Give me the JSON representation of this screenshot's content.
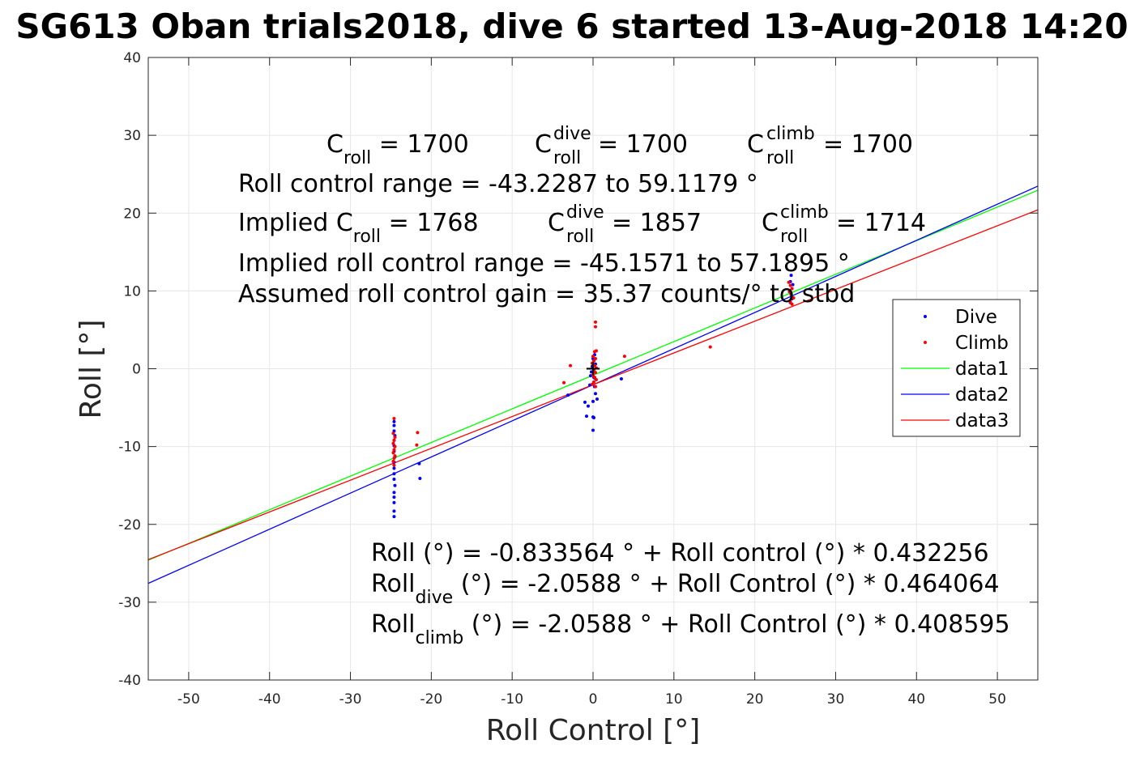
{
  "chart_data": {
    "type": "scatter",
    "title": "SG613 Oban trials2018, dive 6 started 13-Aug-2018 14:20",
    "xlabel": "Roll Control [°]",
    "ylabel": "Roll [°]",
    "xlim": [
      -55,
      55
    ],
    "ylim": [
      -40,
      40
    ],
    "xticks": [
      -50,
      -40,
      -30,
      -20,
      -10,
      0,
      10,
      20,
      30,
      40,
      50
    ],
    "yticks": [
      -40,
      -30,
      -20,
      -10,
      0,
      10,
      20,
      30,
      40
    ],
    "grid": true,
    "legend_position": "right",
    "colors": {
      "dive": "#0000ff",
      "climb": "#ff0000",
      "data1": "#00ff00",
      "data2": "#0000ff",
      "data3": "#ff0000"
    },
    "scatter_series": [
      {
        "name": "Dive",
        "color": "#0000ff",
        "points": [
          [
            -24.6,
            -6.8
          ],
          [
            -24.6,
            -7.3
          ],
          [
            -24.6,
            -8.0
          ],
          [
            -24.5,
            -8.6
          ],
          [
            -24.6,
            -9.2
          ],
          [
            -24.6,
            -9.9
          ],
          [
            -24.6,
            -10.6
          ],
          [
            -24.5,
            -11.3
          ],
          [
            -24.6,
            -12.0
          ],
          [
            -24.6,
            -12.8
          ],
          [
            -24.6,
            -13.5
          ],
          [
            -24.6,
            -14.2
          ],
          [
            -24.5,
            -15.0
          ],
          [
            -24.6,
            -15.9
          ],
          [
            -24.6,
            -16.5
          ],
          [
            -24.6,
            -17.2
          ],
          [
            -24.6,
            -18.3
          ],
          [
            -24.6,
            -19.0
          ],
          [
            -21.5,
            -12.2
          ],
          [
            -21.4,
            -14.1
          ],
          [
            -3.1,
            -3.4
          ],
          [
            -1.0,
            -4.3
          ],
          [
            -0.6,
            -4.8
          ],
          [
            -0.8,
            -6.1
          ],
          [
            0.0,
            -6.2
          ],
          [
            0.1,
            -6.3
          ],
          [
            0.0,
            -7.9
          ],
          [
            0.2,
            -2.3
          ],
          [
            0.3,
            -3.2
          ],
          [
            0.5,
            -3.9
          ],
          [
            0.0,
            -4.2
          ],
          [
            0.2,
            -1.2
          ],
          [
            -0.4,
            -2.1
          ],
          [
            0.1,
            -1.1
          ],
          [
            -0.2,
            -0.4
          ],
          [
            0.3,
            0.6
          ],
          [
            0.0,
            1.3
          ],
          [
            0.2,
            1.8
          ],
          [
            -0.1,
            0.3
          ],
          [
            -0.3,
            -0.9
          ],
          [
            3.5,
            -1.3
          ],
          [
            24.5,
            12.0
          ],
          [
            24.4,
            11.2
          ],
          [
            24.6,
            10.3
          ],
          [
            24.5,
            9.6
          ],
          [
            24.6,
            9.0
          ],
          [
            24.4,
            8.5
          ],
          [
            24.7,
            10.8
          ],
          [
            24.3,
            9.9
          ]
        ]
      },
      {
        "name": "Climb",
        "color": "#ff0000",
        "points": [
          [
            -24.6,
            -6.4
          ],
          [
            -24.7,
            -8.3
          ],
          [
            -24.5,
            -8.8
          ],
          [
            -24.6,
            -9.2
          ],
          [
            -24.7,
            -9.6
          ],
          [
            -24.5,
            -10.0
          ],
          [
            -24.6,
            -10.4
          ],
          [
            -24.7,
            -10.8
          ],
          [
            -24.5,
            -11.2
          ],
          [
            -24.6,
            -11.5
          ],
          [
            -24.7,
            -11.9
          ],
          [
            -24.6,
            -12.4
          ],
          [
            -21.7,
            -8.2
          ],
          [
            -21.8,
            -9.8
          ],
          [
            -3.6,
            -1.8
          ],
          [
            -2.8,
            0.4
          ],
          [
            0.3,
            6.0
          ],
          [
            0.3,
            5.4
          ],
          [
            0.2,
            2.2
          ],
          [
            0.4,
            2.3
          ],
          [
            0.0,
            1.6
          ],
          [
            0.3,
            1.3
          ],
          [
            0.1,
            1.0
          ],
          [
            -0.1,
            0.7
          ],
          [
            0.2,
            0.4
          ],
          [
            0.4,
            0.1
          ],
          [
            0.1,
            -0.2
          ],
          [
            0.3,
            -0.5
          ],
          [
            0.0,
            -0.8
          ],
          [
            0.2,
            -1.1
          ],
          [
            0.4,
            -1.4
          ],
          [
            0.1,
            -1.7
          ],
          [
            -0.1,
            -2.0
          ],
          [
            0.3,
            -2.3
          ],
          [
            3.9,
            1.6
          ],
          [
            14.5,
            2.8
          ],
          [
            24.2,
            11.1
          ],
          [
            24.4,
            10.7
          ],
          [
            24.6,
            10.3
          ],
          [
            24.3,
            9.9
          ],
          [
            24.5,
            9.5
          ],
          [
            24.8,
            9.1
          ],
          [
            24.4,
            8.6
          ],
          [
            24.6,
            8.3
          ]
        ]
      }
    ],
    "line_series": [
      {
        "name": "data1",
        "color": "#00ff00",
        "intercept": -0.833564,
        "slope": 0.432256
      },
      {
        "name": "data2",
        "color": "#0000ff",
        "intercept": -2.0588,
        "slope": 0.464064
      },
      {
        "name": "data3",
        "color": "#ff0000",
        "intercept": -2.0588,
        "slope": 0.408595
      }
    ],
    "annotations": {
      "line1": {
        "c": "C",
        "c_sub": "roll",
        "eq1": " = 1700",
        "cd": "C",
        "cd_sup": "dive",
        "cd_sub": "roll",
        "eq2": " = 1700",
        "cc": "C",
        "cc_sup": "climb",
        "cc_sub": "roll",
        "eq3": " = 1700"
      },
      "line2": "Roll control range = -43.2287 to 59.1179 °",
      "line3": {
        "prefix": "Implied C",
        "c_sub": "roll",
        "eq1": " = 1768",
        "cd": "C",
        "cd_sup": "dive",
        "cd_sub": "roll",
        "eq2": " = 1857",
        "cc": "C",
        "cc_sup": "climb",
        "cc_sub": "roll",
        "eq3": " = 1714"
      },
      "line4": "Implied roll control range = -45.1571 to 57.1895 °",
      "line5": "Assumed roll control gain = 35.37 counts/° to stbd",
      "fit1": "Roll (°) = -0.833564 ° + Roll control (°) * 0.432256",
      "fit2": {
        "a": "Roll",
        "sub": "dive",
        "b": " (°) = -2.0588 ° + Roll Control (°) * 0.464064"
      },
      "fit3": {
        "a": "Roll",
        "sub": "climb",
        "b": " (°) = -2.0588 ° + Roll Control (°) * 0.408595"
      }
    },
    "marker": {
      "label": "+",
      "x": 0,
      "y": 0
    }
  }
}
